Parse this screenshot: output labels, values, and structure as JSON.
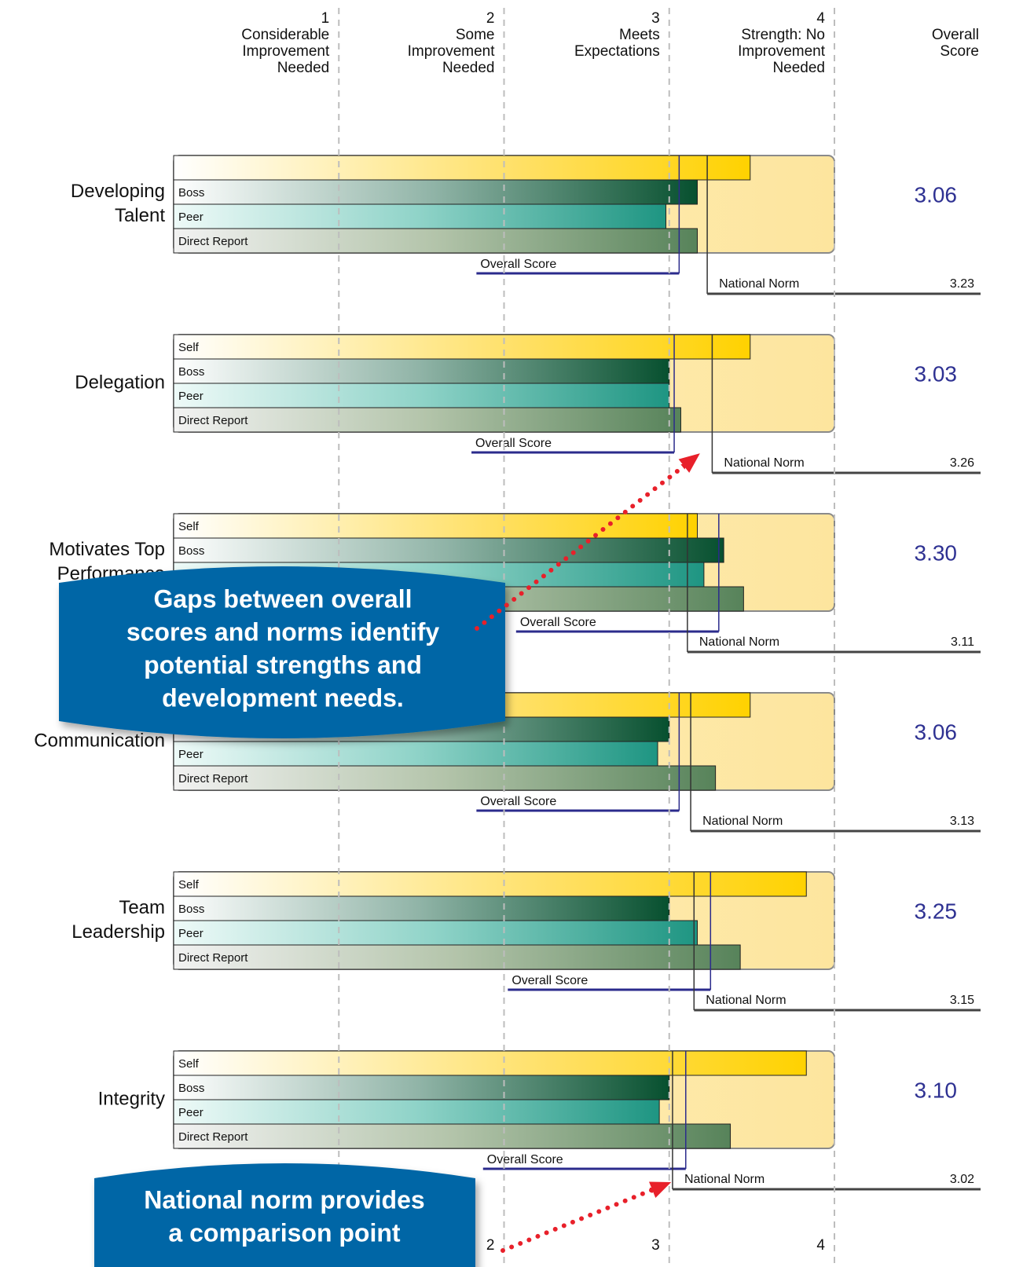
{
  "chart_data": {
    "type": "bar",
    "xlim": [
      0,
      4
    ],
    "xticks": [
      1,
      2,
      3,
      4
    ],
    "scale_labels": [
      [
        "Considerable",
        "Improvement",
        "Needed"
      ],
      [
        "Some",
        "Improvement",
        "Needed"
      ],
      [
        "Meets",
        "Expectations"
      ],
      [
        "Strength: No",
        "Improvement",
        "Needed"
      ]
    ],
    "overall_header": [
      "Overall",
      "Score"
    ],
    "series_names": [
      "Self",
      "Boss",
      "Peer",
      "Direct Report"
    ],
    "overall_text": "Overall Score",
    "norm_text": "National Norm",
    "grid": true,
    "groups": [
      {
        "category": [
          "Developing",
          "Talent"
        ],
        "values": [
          3.49,
          3.17,
          2.98,
          3.17
        ],
        "overall": 3.06,
        "overall_label": "3.06",
        "norm": 3.23,
        "unlabeled_rows": [
          0
        ]
      },
      {
        "category": [
          "Delegation"
        ],
        "values": [
          3.49,
          3.0,
          3.0,
          3.07
        ],
        "overall": 3.03,
        "overall_label": "3.03",
        "norm": 3.26
      },
      {
        "category": [
          "Motivates Top",
          "Performance"
        ],
        "values": [
          3.17,
          3.33,
          3.21,
          3.45
        ],
        "overall": 3.3,
        "overall_label": "3.30",
        "norm": 3.11
      },
      {
        "category": [
          "Communication"
        ],
        "values": [
          3.49,
          3.0,
          2.93,
          3.28
        ],
        "overall": 3.06,
        "overall_label": "3.06",
        "norm": 3.13
      },
      {
        "category": [
          "Team",
          "Leadership"
        ],
        "values": [
          3.83,
          3.0,
          3.17,
          3.43
        ],
        "overall": 3.25,
        "overall_label": "3.25",
        "norm": 3.15
      },
      {
        "category": [
          "Integrity"
        ],
        "values": [
          3.83,
          3.0,
          2.94,
          3.37
        ],
        "overall": 3.1,
        "overall_label": "3.10",
        "norm": 3.02
      }
    ],
    "callouts": [
      [
        "Gaps between overall",
        "scores and norms identify",
        "potential strengths and",
        "development needs."
      ],
      [
        "National norm provides",
        "a comparison point"
      ]
    ]
  }
}
